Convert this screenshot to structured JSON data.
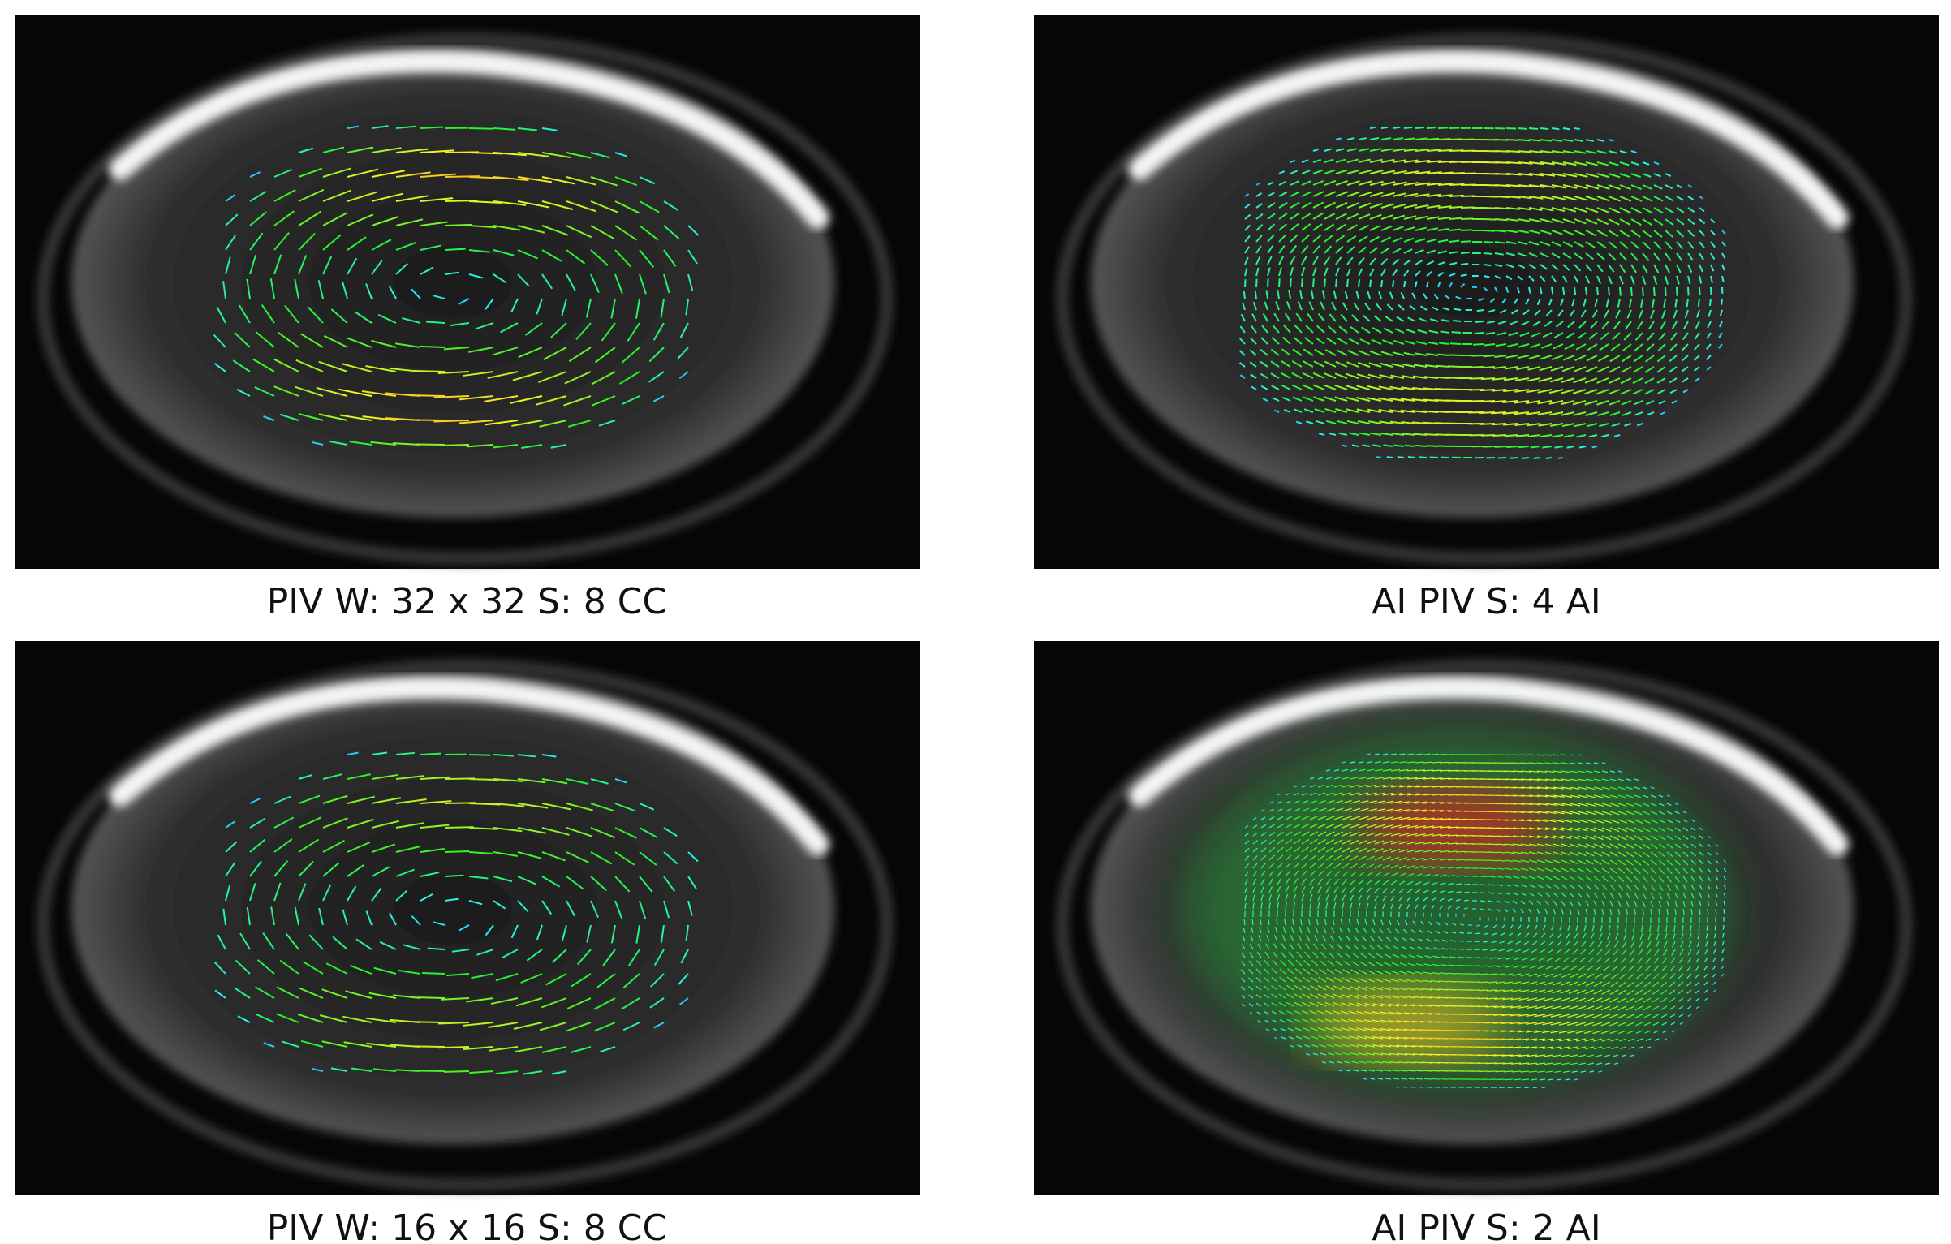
{
  "panels": [
    {
      "caption": "PIV W: 32 x 32 S: 8 CC"
    },
    {
      "caption": "AI PIV S: 4 AI"
    },
    {
      "caption": "PIV W: 16 x 16 S: 8 CC"
    },
    {
      "caption": "AI PIV S: 2 AI"
    }
  ]
}
